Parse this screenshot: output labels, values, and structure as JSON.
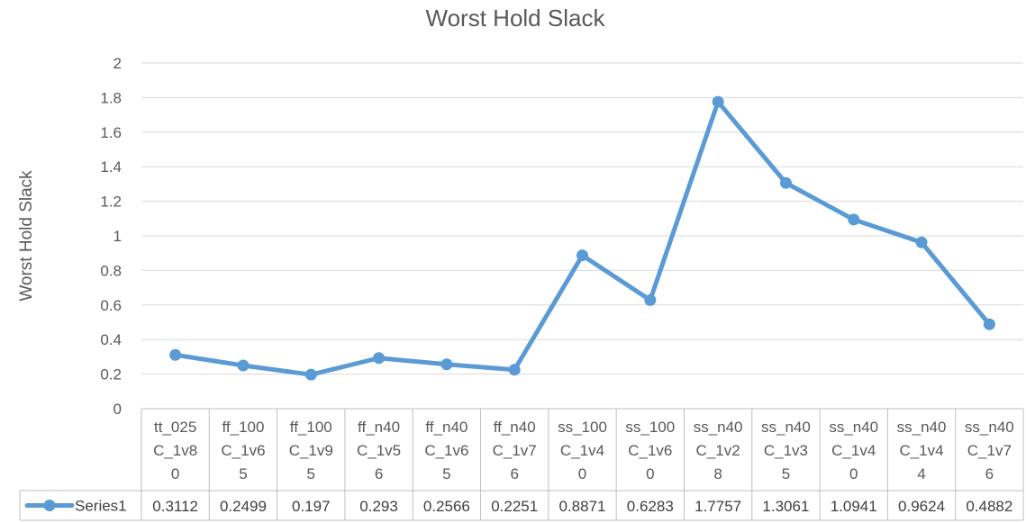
{
  "chart_data": {
    "type": "line",
    "title": "Worst Hold Slack",
    "ylabel": "Worst Hold Slack",
    "ylim": [
      0,
      2
    ],
    "yticks": [
      0,
      0.2,
      0.4,
      0.6,
      0.8,
      1,
      1.2,
      1.4,
      1.6,
      1.8,
      2
    ],
    "ytick_labels": [
      "0",
      "0.2",
      "0.4",
      "0.6",
      "0.8",
      "1",
      "1.2",
      "1.4",
      "1.6",
      "1.8",
      "2"
    ],
    "grid": true,
    "data_table": true,
    "categories": [
      [
        "tt_025",
        "C_1v8",
        "0"
      ],
      [
        "ff_100",
        "C_1v6",
        "5"
      ],
      [
        "ff_100",
        "C_1v9",
        "5"
      ],
      [
        "ff_n40",
        "C_1v5",
        "6"
      ],
      [
        "ff_n40",
        "C_1v6",
        "5"
      ],
      [
        "ff_n40",
        "C_1v7",
        "6"
      ],
      [
        "ss_100",
        "C_1v4",
        "0"
      ],
      [
        "ss_100",
        "C_1v6",
        "0"
      ],
      [
        "ss_n40",
        "C_1v2",
        "8"
      ],
      [
        "ss_n40",
        "C_1v3",
        "5"
      ],
      [
        "ss_n40",
        "C_1v4",
        "0"
      ],
      [
        "ss_n40",
        "C_1v4",
        "4"
      ],
      [
        "ss_n40",
        "C_1v7",
        "6"
      ]
    ],
    "series": [
      {
        "name": "Series1",
        "color": "#5b9bd5",
        "values": [
          0.3112,
          0.2499,
          0.197,
          0.293,
          0.2566,
          0.2251,
          0.8871,
          0.6283,
          1.7757,
          1.3061,
          1.0941,
          0.9624,
          0.4882
        ],
        "value_labels": [
          "0.3112",
          "0.2499",
          "0.197",
          "0.293",
          "0.2566",
          "0.2251",
          "0.8871",
          "0.6283",
          "1.7757",
          "1.3061",
          "1.0941",
          "0.9624",
          "0.4882"
        ]
      }
    ]
  }
}
